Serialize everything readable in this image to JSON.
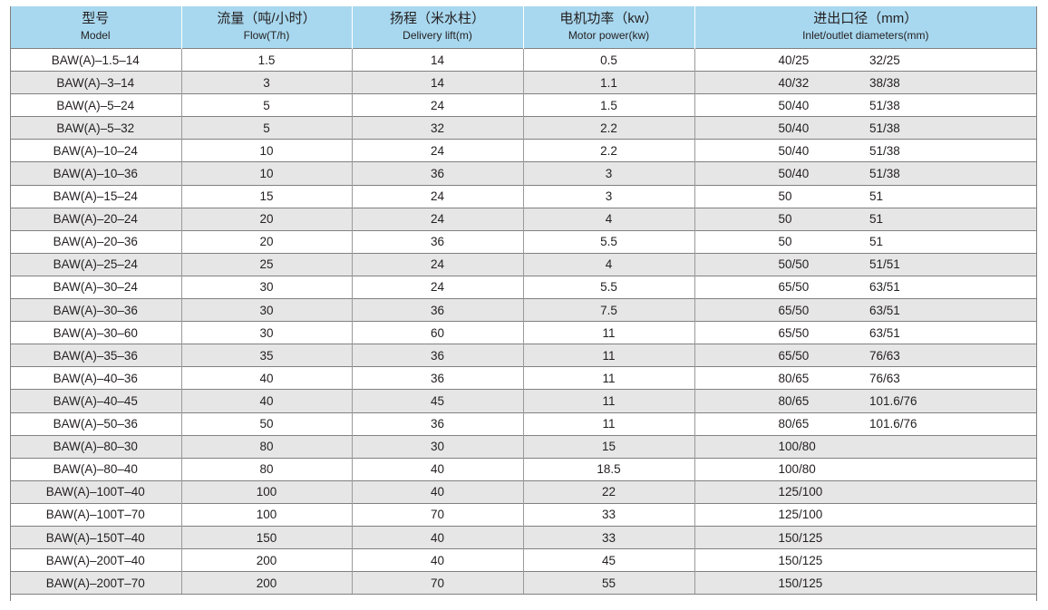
{
  "headers": {
    "model": {
      "zh": "型号",
      "en": "Model"
    },
    "flow": {
      "zh": "流量（吨/小时）",
      "en": "Flow(T/h)"
    },
    "lift": {
      "zh": "扬程（米水柱）",
      "en": "Delivery lift(m)"
    },
    "power": {
      "zh": "电机功率（kw）",
      "en": "Motor power(kw)"
    },
    "diam": {
      "zh": "进出口径（mm）",
      "en": "Inlet/outlet  diameters(mm)"
    }
  },
  "rows": [
    {
      "model": "BAW(A)–1.5–14",
      "flow": "1.5",
      "lift": "14",
      "power": "0.5",
      "inlet": "40/25",
      "outlet": "32/25"
    },
    {
      "model": "BAW(A)–3–14",
      "flow": "3",
      "lift": "14",
      "power": "1.1",
      "inlet": "40/32",
      "outlet": "38/38"
    },
    {
      "model": "BAW(A)–5–24",
      "flow": "5",
      "lift": "24",
      "power": "1.5",
      "inlet": "50/40",
      "outlet": "51/38"
    },
    {
      "model": "BAW(A)–5–32",
      "flow": "5",
      "lift": "32",
      "power": "2.2",
      "inlet": "50/40",
      "outlet": "51/38"
    },
    {
      "model": "BAW(A)–10–24",
      "flow": "10",
      "lift": "24",
      "power": "2.2",
      "inlet": "50/40",
      "outlet": "51/38"
    },
    {
      "model": "BAW(A)–10–36",
      "flow": "10",
      "lift": "36",
      "power": "3",
      "inlet": "50/40",
      "outlet": "51/38"
    },
    {
      "model": "BAW(A)–15–24",
      "flow": "15",
      "lift": "24",
      "power": "3",
      "inlet": "50",
      "outlet": "51"
    },
    {
      "model": "BAW(A)–20–24",
      "flow": "20",
      "lift": "24",
      "power": "4",
      "inlet": "50",
      "outlet": "51"
    },
    {
      "model": "BAW(A)–20–36",
      "flow": "20",
      "lift": "36",
      "power": "5.5",
      "inlet": "50",
      "outlet": "51"
    },
    {
      "model": "BAW(A)–25–24",
      "flow": "25",
      "lift": "24",
      "power": "4",
      "inlet": "50/50",
      "outlet": "51/51"
    },
    {
      "model": "BAW(A)–30–24",
      "flow": "30",
      "lift": "24",
      "power": "5.5",
      "inlet": "65/50",
      "outlet": "63/51"
    },
    {
      "model": "BAW(A)–30–36",
      "flow": "30",
      "lift": "36",
      "power": "7.5",
      "inlet": "65/50",
      "outlet": "63/51"
    },
    {
      "model": "BAW(A)–30–60",
      "flow": "30",
      "lift": "60",
      "power": "11",
      "inlet": "65/50",
      "outlet": "63/51"
    },
    {
      "model": "BAW(A)–35–36",
      "flow": "35",
      "lift": "36",
      "power": "11",
      "inlet": "65/50",
      "outlet": "76/63"
    },
    {
      "model": "BAW(A)–40–36",
      "flow": "40",
      "lift": "36",
      "power": "11",
      "inlet": "80/65",
      "outlet": "76/63"
    },
    {
      "model": "BAW(A)–40–45",
      "flow": "40",
      "lift": "45",
      "power": "11",
      "inlet": "80/65",
      "outlet": "101.6/76"
    },
    {
      "model": "BAW(A)–50–36",
      "flow": "50",
      "lift": "36",
      "power": "11",
      "inlet": "80/65",
      "outlet": "101.6/76"
    },
    {
      "model": "BAW(A)–80–30",
      "flow": "80",
      "lift": "30",
      "power": "15",
      "inlet": "100/80",
      "outlet": ""
    },
    {
      "model": "BAW(A)–80–40",
      "flow": "80",
      "lift": "40",
      "power": "18.5",
      "inlet": "100/80",
      "outlet": ""
    },
    {
      "model": "BAW(A)–100T–40",
      "flow": "100",
      "lift": "40",
      "power": "22",
      "inlet": "125/100",
      "outlet": ""
    },
    {
      "model": "BAW(A)–100T–70",
      "flow": "100",
      "lift": "70",
      "power": "33",
      "inlet": "125/100",
      "outlet": ""
    },
    {
      "model": "BAW(A)–150T–40",
      "flow": "150",
      "lift": "40",
      "power": "33",
      "inlet": "150/125",
      "outlet": ""
    },
    {
      "model": "BAW(A)–200T–40",
      "flow": "200",
      "lift": "40",
      "power": "45",
      "inlet": "150/125",
      "outlet": ""
    },
    {
      "model": "BAW(A)–200T–70",
      "flow": "200",
      "lift": "70",
      "power": "55",
      "inlet": "150/125",
      "outlet": ""
    }
  ],
  "colors": {
    "header_bg": "#a8d8ef",
    "alt_row_bg": "#e6e6e7",
    "text": "#231f20",
    "rule": "#808080"
  }
}
